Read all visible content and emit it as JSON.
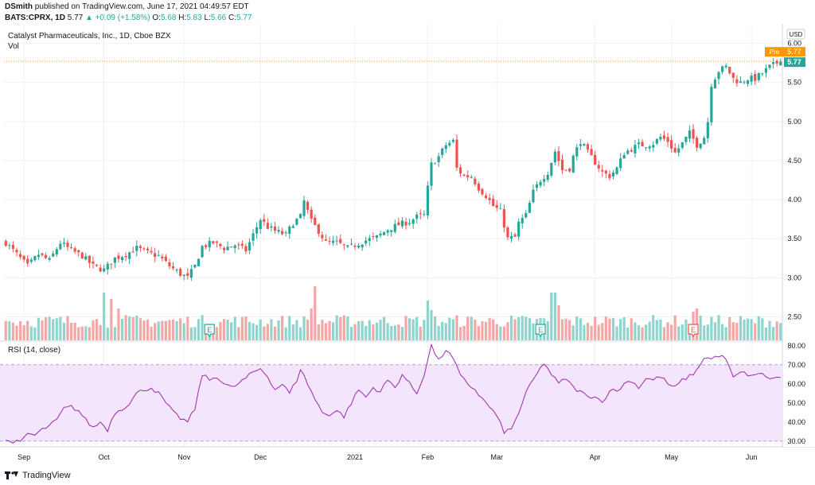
{
  "header": {
    "line1_user": "DSmith",
    "line1_text": "published on TradingView.com, June 17, 2021 04:49:57 EDT",
    "symbol": "BATS:CPRX, 1D",
    "last": "5.77",
    "change": "+0.09 (+1.58%)",
    "o_label": "O:",
    "o": "5.68",
    "h_label": "H:",
    "h": "5.83",
    "l_label": "L:",
    "l": "5.66",
    "c_label": "C:",
    "c": "5.77"
  },
  "panes": {
    "main_title": "Catalyst Pharmaceuticals, Inc., 1D, Cboe BZX",
    "vol_label": "Vol",
    "rsi_title": "RSI (14, close)"
  },
  "currency": "USD",
  "badges": {
    "pre_label": "Pre",
    "pre_value": "5.77",
    "last_value": "5.77"
  },
  "earnings_marker": "E",
  "brand": "TradingView",
  "colors": {
    "up": "#26a69a",
    "down": "#ef5350",
    "vol_up": "#8fd4cd",
    "vol_down": "#f4a7a5",
    "rsi_line": "#9c27b0",
    "rsi_band": "#f3e5fb",
    "pre_badge": "#ff9800",
    "last_badge": "#26a69a"
  },
  "chart_data": [
    {
      "type": "candlestick",
      "price_axis": {
        "ticks": [
          "2.50",
          "3.00",
          "3.50",
          "4.00",
          "4.50",
          "5.00",
          "5.50",
          "6.00"
        ],
        "range": [
          2.2,
          6.25
        ]
      },
      "x_ticks": [
        "Sep",
        "Oct",
        "Nov",
        "Dec",
        "2021",
        "Feb",
        "Mar",
        "Apr",
        "May",
        "Jun"
      ],
      "x_tick_day_index": [
        5,
        27,
        49,
        70,
        96,
        116,
        135,
        162,
        183,
        205
      ],
      "earnings_day_index": [
        56,
        147,
        189
      ],
      "anchors": [
        [
          0,
          3.45
        ],
        [
          3,
          3.3
        ],
        [
          6,
          3.15
        ],
        [
          9,
          3.3
        ],
        [
          12,
          3.22
        ],
        [
          15,
          3.45
        ],
        [
          18,
          3.35
        ],
        [
          21,
          3.28
        ],
        [
          24,
          3.15
        ],
        [
          27,
          3.1
        ],
        [
          30,
          3.25
        ],
        [
          33,
          3.3
        ],
        [
          36,
          3.38
        ],
        [
          39,
          3.32
        ],
        [
          42,
          3.28
        ],
        [
          45,
          3.15
        ],
        [
          48,
          3.05
        ],
        [
          50,
          3.0
        ],
        [
          52,
          3.15
        ],
        [
          54,
          3.4
        ],
        [
          57,
          3.45
        ],
        [
          60,
          3.38
        ],
        [
          63,
          3.42
        ],
        [
          66,
          3.35
        ],
        [
          68,
          3.55
        ],
        [
          70,
          3.75
        ],
        [
          72,
          3.65
        ],
        [
          74,
          3.6
        ],
        [
          77,
          3.55
        ],
        [
          79,
          3.7
        ],
        [
          81,
          3.78
        ],
        [
          82,
          3.98
        ],
        [
          84,
          3.72
        ],
        [
          86,
          3.6
        ],
        [
          88,
          3.45
        ],
        [
          91,
          3.45
        ],
        [
          94,
          3.38
        ],
        [
          96,
          3.42
        ],
        [
          99,
          3.48
        ],
        [
          102,
          3.52
        ],
        [
          105,
          3.62
        ],
        [
          108,
          3.68
        ],
        [
          111,
          3.72
        ],
        [
          113,
          3.78
        ],
        [
          115,
          3.8
        ],
        [
          116,
          4.15
        ],
        [
          117,
          4.45
        ],
        [
          119,
          4.55
        ],
        [
          121,
          4.7
        ],
        [
          123,
          4.75
        ],
        [
          124,
          4.4
        ],
        [
          126,
          4.3
        ],
        [
          128,
          4.3
        ],
        [
          130,
          4.15
        ],
        [
          132,
          4.05
        ],
        [
          134,
          3.92
        ],
        [
          136,
          3.85
        ],
        [
          138,
          3.5
        ],
        [
          140,
          3.52
        ],
        [
          141,
          3.7
        ],
        [
          143,
          3.8
        ],
        [
          145,
          4.1
        ],
        [
          147,
          4.25
        ],
        [
          149,
          4.35
        ],
        [
          151,
          4.62
        ],
        [
          153,
          4.38
        ],
        [
          155,
          4.4
        ],
        [
          156,
          4.55
        ],
        [
          158,
          4.75
        ],
        [
          160,
          4.6
        ],
        [
          162,
          4.48
        ],
        [
          164,
          4.35
        ],
        [
          166,
          4.3
        ],
        [
          168,
          4.4
        ],
        [
          170,
          4.6
        ],
        [
          172,
          4.65
        ],
        [
          174,
          4.7
        ],
        [
          176,
          4.7
        ],
        [
          178,
          4.72
        ],
        [
          180,
          4.8
        ],
        [
          182,
          4.75
        ],
        [
          184,
          4.6
        ],
        [
          186,
          4.72
        ],
        [
          188,
          4.85
        ],
        [
          190,
          4.7
        ],
        [
          192,
          4.8
        ],
        [
          193,
          5.0
        ],
        [
          194,
          5.48
        ],
        [
          196,
          5.65
        ],
        [
          198,
          5.7
        ],
        [
          200,
          5.55
        ],
        [
          202,
          5.5
        ],
        [
          204,
          5.55
        ],
        [
          206,
          5.55
        ],
        [
          208,
          5.62
        ],
        [
          210,
          5.7
        ],
        [
          212,
          5.75
        ],
        [
          213,
          5.77
        ]
      ],
      "last_close": 5.77
    },
    {
      "type": "bar",
      "name": "Vol",
      "note": "relative volume (no axis values printed)",
      "spikes": [
        [
          27,
          3.0
        ],
        [
          29,
          2.6
        ],
        [
          31,
          2.0
        ],
        [
          85,
          3.4
        ],
        [
          84,
          2.0
        ],
        [
          116,
          2.5
        ],
        [
          117,
          1.9
        ],
        [
          150,
          3.0
        ],
        [
          151,
          3.0
        ],
        [
          152,
          2.2
        ],
        [
          190,
          2.0
        ],
        [
          189,
          1.8
        ]
      ]
    },
    {
      "type": "line",
      "name": "RSI (14, close)",
      "y_axis": {
        "ticks": [
          "30.00",
          "40.00",
          "50.00",
          "60.00",
          "70.00",
          "80.00"
        ],
        "range": [
          27,
          82
        ]
      },
      "band": [
        30,
        70
      ],
      "anchors": [
        [
          0,
          30
        ],
        [
          2,
          30
        ],
        [
          4,
          29
        ],
        [
          6,
          34
        ],
        [
          8,
          33
        ],
        [
          10,
          36
        ],
        [
          12,
          38
        ],
        [
          14,
          41
        ],
        [
          16,
          47
        ],
        [
          18,
          48
        ],
        [
          20,
          46
        ],
        [
          22,
          41
        ],
        [
          24,
          37
        ],
        [
          26,
          40
        ],
        [
          28,
          36
        ],
        [
          30,
          45
        ],
        [
          32,
          47
        ],
        [
          34,
          50
        ],
        [
          36,
          55
        ],
        [
          38,
          57
        ],
        [
          40,
          58
        ],
        [
          42,
          55
        ],
        [
          44,
          50
        ],
        [
          46,
          45
        ],
        [
          48,
          42
        ],
        [
          50,
          40
        ],
        [
          52,
          47
        ],
        [
          54,
          65
        ],
        [
          56,
          62
        ],
        [
          58,
          64
        ],
        [
          60,
          60
        ],
        [
          62,
          58
        ],
        [
          64,
          60
        ],
        [
          66,
          63
        ],
        [
          68,
          66
        ],
        [
          70,
          68
        ],
        [
          72,
          64
        ],
        [
          74,
          57
        ],
        [
          76,
          60
        ],
        [
          78,
          55
        ],
        [
          80,
          62
        ],
        [
          81,
          68
        ],
        [
          83,
          60
        ],
        [
          85,
          52
        ],
        [
          87,
          45
        ],
        [
          89,
          44
        ],
        [
          91,
          46
        ],
        [
          93,
          43
        ],
        [
          95,
          50
        ],
        [
          97,
          57
        ],
        [
          99,
          53
        ],
        [
          101,
          58
        ],
        [
          103,
          56
        ],
        [
          105,
          62
        ],
        [
          107,
          58
        ],
        [
          109,
          65
        ],
        [
          111,
          60
        ],
        [
          113,
          55
        ],
        [
          115,
          65
        ],
        [
          117,
          80
        ],
        [
          119,
          72
        ],
        [
          121,
          78
        ],
        [
          123,
          73
        ],
        [
          125,
          64
        ],
        [
          127,
          60
        ],
        [
          129,
          57
        ],
        [
          131,
          52
        ],
        [
          133,
          48
        ],
        [
          135,
          43
        ],
        [
          137,
          35
        ],
        [
          139,
          36
        ],
        [
          141,
          45
        ],
        [
          143,
          55
        ],
        [
          145,
          62
        ],
        [
          147,
          68
        ],
        [
          148,
          71
        ],
        [
          150,
          65
        ],
        [
          152,
          60
        ],
        [
          154,
          63
        ],
        [
          156,
          58
        ],
        [
          158,
          56
        ],
        [
          160,
          53
        ],
        [
          162,
          54
        ],
        [
          164,
          50
        ],
        [
          166,
          57
        ],
        [
          168,
          56
        ],
        [
          170,
          60
        ],
        [
          172,
          62
        ],
        [
          174,
          58
        ],
        [
          176,
          63
        ],
        [
          178,
          62
        ],
        [
          180,
          64
        ],
        [
          182,
          60
        ],
        [
          184,
          58
        ],
        [
          186,
          62
        ],
        [
          188,
          64
        ],
        [
          190,
          67
        ],
        [
          192,
          74
        ],
        [
          194,
          73
        ],
        [
          196,
          75
        ],
        [
          198,
          73
        ],
        [
          200,
          63
        ],
        [
          202,
          66
        ],
        [
          204,
          65
        ],
        [
          206,
          64
        ],
        [
          208,
          66
        ],
        [
          210,
          62
        ],
        [
          212,
          64
        ],
        [
          213,
          63
        ]
      ]
    }
  ]
}
